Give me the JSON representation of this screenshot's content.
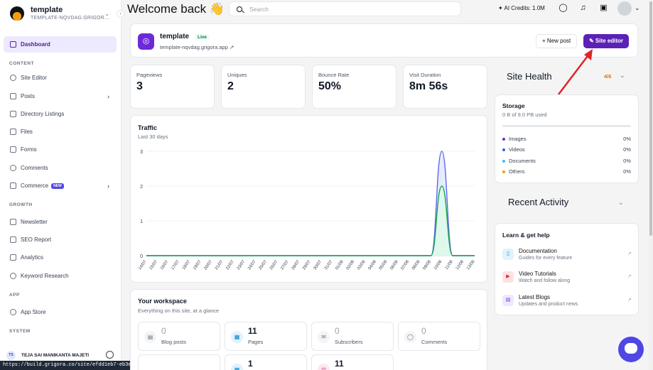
{
  "sidebar": {
    "site_name": "template",
    "site_sub": "TEMPLATE-NQVDAG.GRIGOR...",
    "items": [
      {
        "label": "Dashboard"
      },
      {
        "label": "Site Editor"
      },
      {
        "label": "Posts"
      },
      {
        "label": "Directory Listings"
      },
      {
        "label": "Files"
      },
      {
        "label": "Forms"
      },
      {
        "label": "Comments"
      },
      {
        "label": "Commerce",
        "badge": "NEW"
      },
      {
        "label": "Newsletter"
      },
      {
        "label": "SEO Report"
      },
      {
        "label": "Analytics"
      },
      {
        "label": "Keyword Research"
      },
      {
        "label": "App Store"
      }
    ],
    "sections": {
      "content": "CONTENT",
      "growth": "GROWTH",
      "app": "APP",
      "system": "SYSTEM"
    },
    "user": {
      "initials": "TS",
      "name": "TEJA SAI MANIKANTA MAJETI"
    }
  },
  "status_url": "https://build.grigora.co/site/efdd1eb7-eb3e-481b-a307-d27b49802cd7/editor",
  "header": {
    "welcome": "Welcome back 👋",
    "search_placeholder": "Search",
    "credits": "AI Credits: 1.0M"
  },
  "site": {
    "name": "template",
    "status": "Live",
    "url": "template-nqvdag.grigora.app ↗",
    "new_post": "+ New post",
    "site_editor": "✎ Site editor"
  },
  "stats": [
    {
      "label": "Pageviews",
      "value": "3"
    },
    {
      "label": "Uniques",
      "value": "2"
    },
    {
      "label": "Bounce Rate",
      "value": "50%"
    },
    {
      "label": "Visit Duration",
      "value": "8m 56s"
    }
  ],
  "traffic": {
    "title": "Traffic",
    "subtitle": "Last 30 days"
  },
  "chart_data": {
    "type": "area",
    "title": "Traffic",
    "subtitle": "Last 30 days",
    "categories": [
      "14/07",
      "15/07",
      "16/07",
      "17/07",
      "18/07",
      "19/07",
      "20/07",
      "21/07",
      "22/07",
      "23/07",
      "24/07",
      "25/07",
      "26/07",
      "27/07",
      "28/07",
      "29/07",
      "30/07",
      "31/07",
      "01/08",
      "02/08",
      "03/08",
      "04/08",
      "05/08",
      "06/08",
      "07/08",
      "08/08",
      "09/08",
      "10/08",
      "11/08",
      "12/08",
      "13/08"
    ],
    "series": [
      {
        "values": [
          0,
          0,
          0,
          0,
          0,
          0,
          0,
          0,
          0,
          0,
          0,
          0,
          0,
          0,
          0,
          0,
          0,
          0,
          0,
          0,
          0,
          0,
          0,
          0,
          0,
          0,
          0,
          3,
          0,
          0,
          0
        ],
        "color": "#6366f1"
      },
      {
        "values": [
          0,
          0,
          0,
          0,
          0,
          0,
          0,
          0,
          0,
          0,
          0,
          0,
          0,
          0,
          0,
          0,
          0,
          0,
          0,
          0,
          0,
          0,
          0,
          0,
          0,
          0,
          0,
          2,
          0,
          0,
          0
        ],
        "color": "#16a34a"
      }
    ],
    "yticks": [
      "0",
      "1",
      "2",
      "3"
    ],
    "ylim": [
      0,
      3
    ],
    "grid": true
  },
  "workspace": {
    "title": "Your workspace",
    "subtitle": "Everything on this site, at a glance",
    "tiles": [
      {
        "num": "0",
        "label": "Blog posts",
        "icon": "document-icon"
      },
      {
        "num": "11",
        "label": "Pages",
        "icon": "layout-icon"
      },
      {
        "num": "0",
        "label": "Subscribers",
        "icon": "mail-icon"
      },
      {
        "num": "0",
        "label": "Comments",
        "icon": "comment-icon"
      },
      {
        "num": "1",
        "label": "",
        "icon": "grid-icon"
      },
      {
        "num": "11",
        "label": "",
        "icon": "cart-icon"
      }
    ]
  },
  "site_health": {
    "title": "Site Health",
    "score": "4/6"
  },
  "storage": {
    "title": "Storage",
    "used": "0 B of 9.0 PB used",
    "rows": [
      {
        "label": "Images",
        "pct": "0%",
        "color": "#6d28d9"
      },
      {
        "label": "Videos",
        "pct": "0%",
        "color": "#2563eb"
      },
      {
        "label": "Documents",
        "pct": "0%",
        "color": "#38bdf8"
      },
      {
        "label": "Others",
        "pct": "0%",
        "color": "#f59e0b"
      }
    ]
  },
  "recent_activity": {
    "title": "Recent Activity"
  },
  "learn": {
    "title": "Learn & get help",
    "items": [
      {
        "title": "Documentation",
        "sub": "Guides for every feature"
      },
      {
        "title": "Video Tutorials",
        "sub": "Watch and follow along"
      },
      {
        "title": "Latest Blogs",
        "sub": "Updates and product news"
      }
    ]
  }
}
